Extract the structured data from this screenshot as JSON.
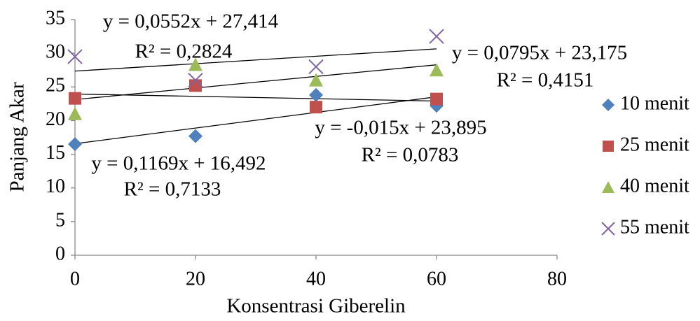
{
  "chart_data": {
    "type": "scatter",
    "x_label": "Konsentrasi Giberelin",
    "y_label": "Panjang Akar",
    "x": [
      0,
      20,
      40,
      60
    ],
    "series": [
      {
        "name": "10 menit",
        "color": "#4f81bd",
        "marker": "diamond",
        "values": [
          16.5,
          17.7,
          23.8,
          22.2
        ]
      },
      {
        "name": "25 menit",
        "color": "#c0504d",
        "marker": "square",
        "values": [
          23.3,
          25.2,
          22.0,
          23.2
        ]
      },
      {
        "name": "40 menit",
        "color": "#9bbb59",
        "marker": "triangle",
        "values": [
          21.0,
          28.3,
          26.0,
          27.5
        ]
      },
      {
        "name": "55 menit",
        "color": "#8064a2",
        "marker": "x",
        "values": [
          29.5,
          26.0,
          28.0,
          32.5
        ]
      }
    ],
    "trendline": "linear",
    "annotations": [
      "y = 0,0552x + 27,414",
      "R² = 0,2824",
      "y = 0,0795x + 23,175",
      "R² = 0,4151",
      "y = -0,015x + 23,895",
      "R² = 0,0783",
      "y = 0,1169x + 16,492",
      "R² = 0,7133"
    ],
    "xlim": [
      0,
      80
    ],
    "xticks": [
      0,
      20,
      40,
      60,
      80
    ],
    "ylim": [
      0,
      35
    ],
    "yticks": [
      0,
      5,
      10,
      15,
      20,
      25,
      30,
      35
    ],
    "grid": false,
    "legend": "right"
  }
}
